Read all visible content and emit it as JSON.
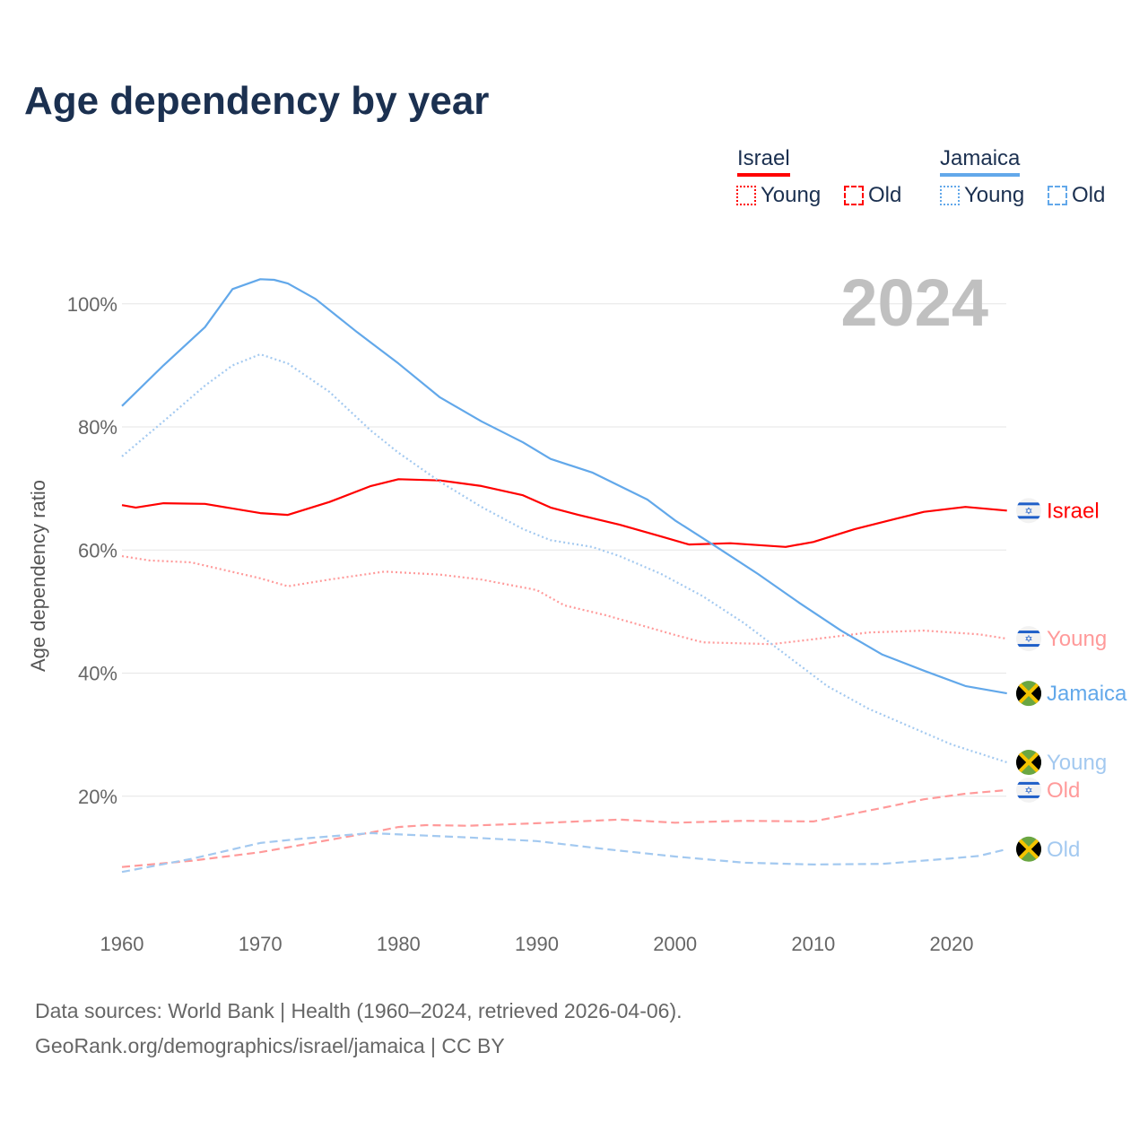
{
  "title": "Age dependency by year",
  "legend": {
    "groups": [
      {
        "country": "Israel",
        "color": "#ff0000",
        "young": "Young",
        "old": "Old"
      },
      {
        "country": "Jamaica",
        "color": "#62a8ea",
        "young": "Young",
        "old": "Old"
      }
    ]
  },
  "footer": {
    "line1": "Data sources: World Bank | Health (1960–2024, retrieved 2026-04-06).",
    "line2": "GeoRank.org/demographics/israel/jamaica | CC BY"
  },
  "chart_data": {
    "type": "line",
    "title": "Age dependency by year",
    "year_label": "2024",
    "xlabel": "",
    "ylabel": "Age dependency ratio",
    "xlim": [
      1960,
      2024
    ],
    "ylim": [
      0,
      105
    ],
    "x_ticks": [
      "1960",
      "1970",
      "1980",
      "1990",
      "2000",
      "2010",
      "2020"
    ],
    "y_ticks": [
      "20%",
      "40%",
      "60%",
      "80%",
      "100%"
    ],
    "grid": true,
    "series": [
      {
        "name": "Israel",
        "label": "Israel",
        "country": "israel",
        "style": "solid",
        "color": "#ff0000",
        "x": [
          1960,
          1961,
          1963,
          1966,
          1970,
          1972,
          1975,
          1978,
          1980,
          1983,
          1986,
          1989,
          1991,
          1993,
          1996,
          1999,
          2001,
          2004,
          2008,
          2010,
          2013,
          2016,
          2018,
          2021,
          2024
        ],
        "y": [
          67.3,
          66.9,
          67.6,
          67.5,
          66,
          65.7,
          67.8,
          70.4,
          71.5,
          71.3,
          70.4,
          68.9,
          66.9,
          65.7,
          64.1,
          62.2,
          60.9,
          61.1,
          60.5,
          61.3,
          63.4,
          65.1,
          66.2,
          67,
          66.4
        ]
      },
      {
        "name": "Israel Young",
        "label": "Young",
        "country": "israel",
        "style": "dotted",
        "color": "#ff9a9a",
        "x": [
          1960,
          1962,
          1965,
          1970,
          1972,
          1975,
          1979,
          1983,
          1986,
          1990,
          1992,
          1995,
          2000,
          2002,
          2007,
          2010,
          2014,
          2018,
          2022,
          2024
        ],
        "y": [
          59,
          58.3,
          58,
          55.4,
          54.1,
          55.2,
          56.5,
          56,
          55.2,
          53.5,
          51,
          49.4,
          46.2,
          45,
          44.7,
          45.5,
          46.6,
          46.9,
          46.3,
          45.6
        ]
      },
      {
        "name": "Israel Old",
        "label": "Old",
        "country": "israel",
        "style": "dashed",
        "color": "#ff9a9a",
        "x": [
          1960,
          1965,
          1970,
          1973,
          1978,
          1980,
          1982,
          1985,
          1990,
          1996,
          2000,
          2005,
          2010,
          2015,
          2018,
          2021,
          2024
        ],
        "y": [
          8.5,
          9.5,
          10.9,
          12.1,
          14.1,
          15,
          15.3,
          15.2,
          15.6,
          16.2,
          15.7,
          16,
          15.9,
          18.1,
          19.5,
          20.4,
          21
        ]
      },
      {
        "name": "Jamaica",
        "label": "Jamaica",
        "country": "jamaica",
        "style": "solid",
        "color": "#62a8ea",
        "x": [
          1960,
          1963,
          1966,
          1968,
          1970,
          1971,
          1972,
          1974,
          1977,
          1980,
          1983,
          1986,
          1989,
          1991,
          1994,
          1996,
          1998,
          2000,
          2003,
          2006,
          2009,
          2012,
          2015,
          2018,
          2021,
          2024
        ],
        "y": [
          83.4,
          90,
          96.2,
          102.4,
          104,
          103.9,
          103.3,
          100.8,
          95.4,
          90.3,
          84.8,
          80.9,
          77.5,
          74.8,
          72.6,
          70.4,
          68.2,
          64.8,
          60.5,
          56.1,
          51.4,
          46.9,
          43,
          40.4,
          37.9,
          36.7
        ]
      },
      {
        "name": "Jamaica Young",
        "label": "Young",
        "country": "jamaica",
        "style": "dotted",
        "color": "#a3c9f0",
        "x": [
          1960,
          1963,
          1966,
          1968,
          1970,
          1972,
          1975,
          1978,
          1980,
          1983,
          1986,
          1989,
          1991,
          1994,
          1996,
          1999,
          2002,
          2005,
          2008,
          2011,
          2014,
          2017,
          2020,
          2024
        ],
        "y": [
          75.2,
          80.9,
          86.7,
          90,
          91.8,
          90.3,
          85.7,
          79.4,
          75.8,
          71.1,
          67,
          63.4,
          61.6,
          60.5,
          59,
          56.1,
          52.5,
          48.1,
          43,
          37.9,
          34.2,
          31.3,
          28.4,
          25.5
        ]
      },
      {
        "name": "Jamaica Old",
        "label": "Old",
        "country": "jamaica",
        "style": "dashed",
        "color": "#a3c9f0",
        "x": [
          1960,
          1965,
          1970,
          1973,
          1978,
          1982,
          1985,
          1990,
          1995,
          2000,
          2005,
          2010,
          2015,
          2020,
          2022,
          2024
        ],
        "y": [
          7.7,
          9.8,
          12.4,
          13.1,
          14,
          13.6,
          13.3,
          12.7,
          11.4,
          10.2,
          9.2,
          8.9,
          9,
          9.9,
          10.3,
          11.4
        ]
      }
    ]
  }
}
